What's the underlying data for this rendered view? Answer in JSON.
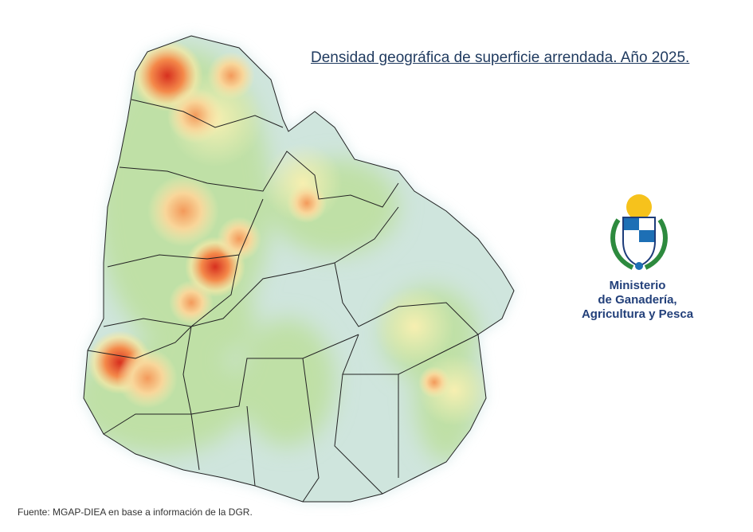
{
  "title": "Densidad geográfica de superficie arrendada. Año 2025.",
  "logo": {
    "lines": [
      "Ministerio",
      "de Ganadería,",
      "Agricultura y Pesca"
    ]
  },
  "source": "Fuente: MGAP-DIEA en base a información de la DGR."
}
